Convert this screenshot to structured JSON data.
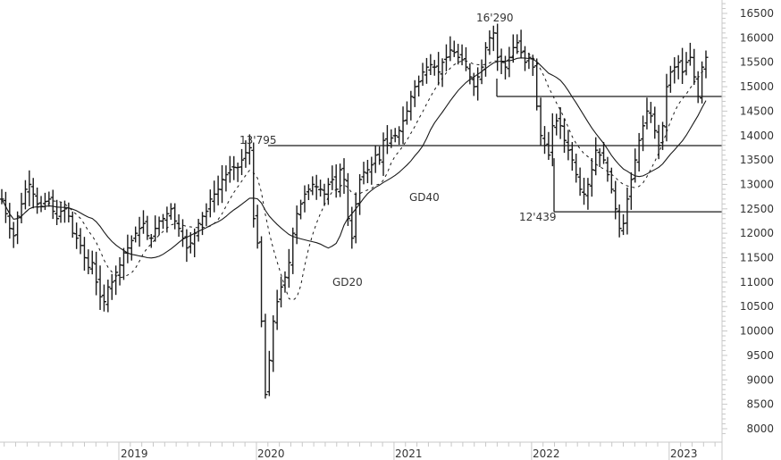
{
  "chart_data": {
    "type": "line",
    "subtype": "ohlc-bar",
    "title": "",
    "xlabel": "",
    "ylabel": "",
    "ylim": [
      7800,
      16700
    ],
    "y_ticks": [
      8000,
      8500,
      9000,
      9500,
      10000,
      10500,
      11000,
      11500,
      12000,
      12500,
      13000,
      13500,
      14000,
      14500,
      15000,
      15500,
      16000,
      16500
    ],
    "x_tick_labels": [
      "2019",
      "2020",
      "2021",
      "2022",
      "2023"
    ],
    "grid": false,
    "legend": "none",
    "annotations": [
      {
        "text": "13'795",
        "value": 13795
      },
      {
        "text": "16'290",
        "value": 16290
      },
      {
        "text": "12'439",
        "value": 12439
      },
      {
        "text": "GD40",
        "desc": "40-week moving average (solid)"
      },
      {
        "text": "GD20",
        "desc": "20-week moving average (dashed)"
      }
    ],
    "horizontal_levels": [
      {
        "value": 13795,
        "from": "2020-01",
        "to": "end"
      },
      {
        "value": 14800,
        "from": "2021-10",
        "to": "end"
      },
      {
        "value": 12439,
        "from": "2022-02",
        "to": "end"
      }
    ],
    "series": [
      {
        "name": "Price (weekly close)",
        "x_start": "2018-02",
        "step": "2 weeks",
        "values": [
          12700,
          12400,
          12100,
          11950,
          12350,
          12600,
          12900,
          13000,
          12800,
          12600,
          12550,
          12650,
          12700,
          12450,
          12300,
          12450,
          12500,
          12350,
          12000,
          11900,
          11750,
          11500,
          11300,
          11400,
          11000,
          10700,
          10600,
          10900,
          11000,
          11200,
          11350,
          11600,
          11700,
          11850,
          12000,
          12100,
          12200,
          11950,
          11900,
          12100,
          12250,
          12300,
          12400,
          12500,
          12250,
          12100,
          11900,
          11700,
          11800,
          12000,
          12200,
          12350,
          12450,
          12700,
          12800,
          12900,
          13100,
          13200,
          13300,
          13350,
          13350,
          13500,
          13650,
          13750,
          12300,
          11800,
          10200,
          8700,
          9400,
          10200,
          10600,
          10900,
          11100,
          11400,
          12000,
          12400,
          12600,
          12800,
          12900,
          13000,
          12950,
          12900,
          12800,
          13000,
          13100,
          12900,
          13300,
          13100,
          12300,
          11900,
          12600,
          13100,
          13250,
          13300,
          13400,
          13600,
          13500,
          13900,
          13800,
          13950,
          14000,
          14100,
          14300,
          14500,
          14800,
          15000,
          15100,
          15300,
          15400,
          15450,
          15400,
          15300,
          15500,
          15600,
          15750,
          15700,
          15600,
          15550,
          15400,
          15200,
          15000,
          15200,
          15400,
          15800,
          16000,
          16100,
          15600,
          15500,
          15400,
          15600,
          15800,
          15900,
          15700,
          15500,
          15600,
          15400,
          14600,
          14000,
          13800,
          13600,
          14200,
          14300,
          14200,
          13900,
          13700,
          13500,
          13200,
          12900,
          12800,
          13000,
          13300,
          13700,
          13600,
          13500,
          13200,
          12900,
          12500,
          12100,
          12200,
          12700,
          13100,
          13500,
          13900,
          14200,
          14500,
          14400,
          14100,
          13800,
          14200,
          15000,
          15300,
          15400,
          15500,
          15300,
          15500,
          15600,
          15200,
          14800,
          15400,
          15600
        ],
        "y_range_shown": [
          8200,
          16290
        ]
      },
      {
        "name": "GD20",
        "style": "dashed"
      },
      {
        "name": "GD40",
        "style": "solid"
      }
    ]
  }
}
